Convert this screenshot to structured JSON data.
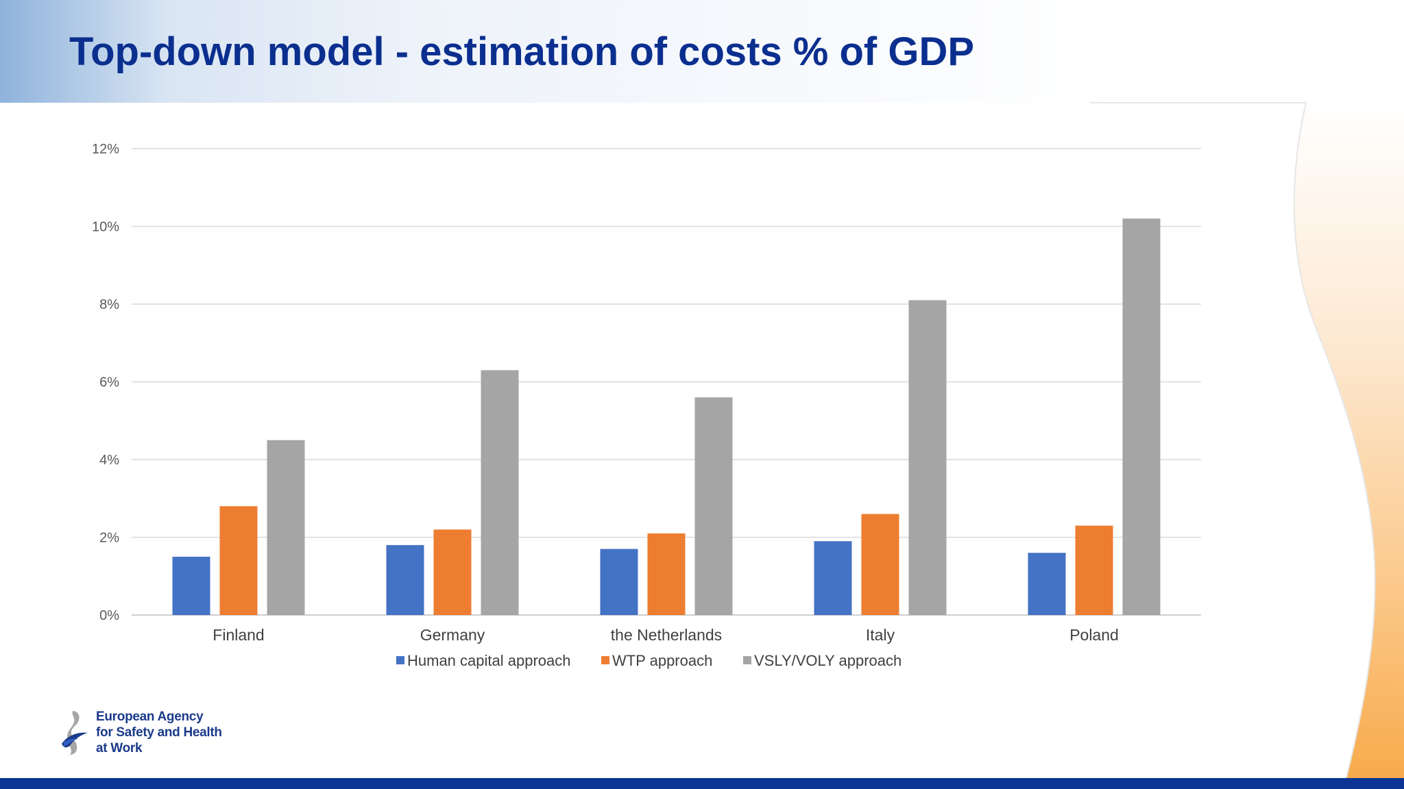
{
  "slide": {
    "title": "Top-down model - estimation of costs % of GDP"
  },
  "logo": {
    "icon": "agency-figure-icon",
    "line1": "European Agency",
    "line2": "for Safety and Health",
    "line3": "at Work"
  },
  "colors": {
    "title": "#0b2f8f",
    "footer": "#0b3494",
    "accent_orange": "#f7b36a"
  },
  "chart_data": {
    "type": "bar",
    "title": "",
    "xlabel": "",
    "ylabel": "",
    "categories": [
      "Finland",
      "Germany",
      "the Netherlands",
      "Italy",
      "Poland"
    ],
    "series": [
      {
        "name": "Human capital approach",
        "color": "#4472c4",
        "values": [
          1.5,
          1.8,
          1.7,
          1.9,
          1.6
        ]
      },
      {
        "name": "WTP approach",
        "color": "#ed7d31",
        "values": [
          2.8,
          2.2,
          2.1,
          2.6,
          2.3
        ]
      },
      {
        "name": "VSLY/VOLY approach",
        "color": "#a5a5a5",
        "values": [
          4.5,
          6.3,
          5.6,
          8.1,
          10.2
        ]
      }
    ],
    "ylim": [
      0,
      12
    ],
    "yticks": [
      "0%",
      "2%",
      "4%",
      "6%",
      "8%",
      "10%",
      "12%"
    ],
    "grid": true,
    "legend_position": "bottom"
  }
}
